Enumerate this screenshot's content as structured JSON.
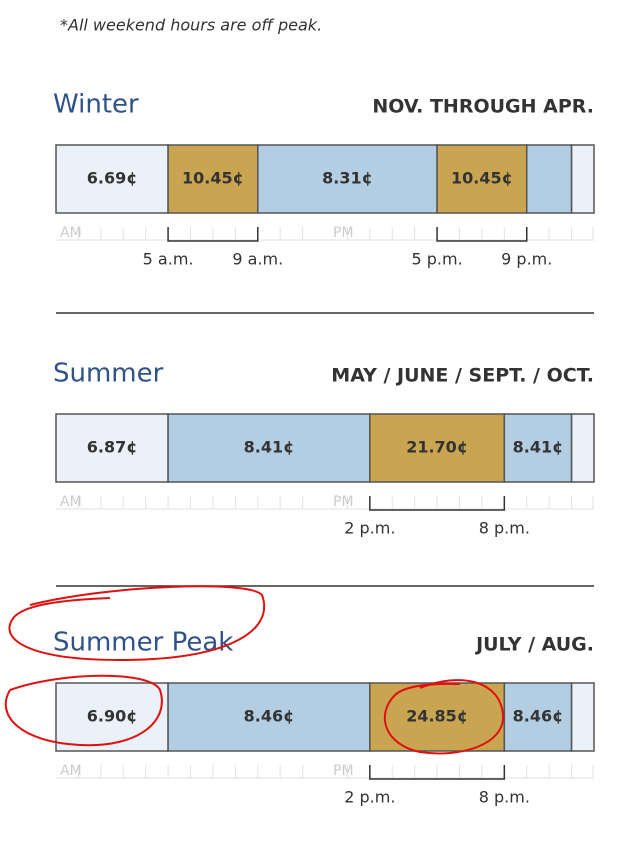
{
  "note": "*All weekend hours are off peak.",
  "am_label": "AM",
  "pm_label": "PM",
  "sections": [
    {
      "name": "Winter",
      "months": "NOV. THROUGH APR.",
      "segments": [
        "6.69¢",
        "10.45¢",
        "8.31¢",
        "10.45¢"
      ],
      "times": [
        "5 a.m.",
        "9 a.m.",
        "5 p.m.",
        "9 p.m."
      ]
    },
    {
      "name": "Summer",
      "months": "MAY / JUNE / SEPT. / OCT.",
      "segments": [
        "6.87¢",
        "8.41¢",
        "21.70¢",
        "8.41¢"
      ],
      "times": [
        "2 p.m.",
        "8 p.m."
      ]
    },
    {
      "name": "Summer Peak",
      "months": "JULY / AUG.",
      "segments": [
        "6.90¢",
        "8.46¢",
        "24.85¢",
        "8.46¢"
      ],
      "times": [
        "2 p.m.",
        "8 p.m."
      ]
    }
  ]
}
